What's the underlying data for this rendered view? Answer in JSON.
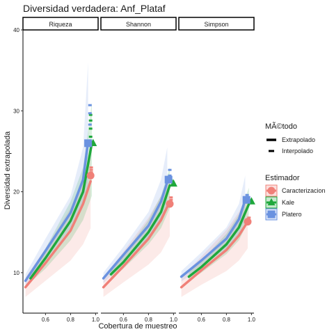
{
  "chart_data": {
    "type": "line",
    "title": "Diversidad verdadera: Anf_Plataf",
    "xlabel": "Cobertura de muestreo",
    "ylabel": "Diversidad extrapolada",
    "ylim": [
      5,
      40
    ],
    "xlim": [
      0.42,
      1.02
    ],
    "y_ticks": [
      10,
      20,
      30,
      40
    ],
    "x_ticks": [
      0.6,
      0.8,
      1.0
    ],
    "x_tick_labels": [
      "0.6",
      "0.8",
      "1.0"
    ],
    "grid": false,
    "facets": [
      "Riqueza",
      "Shannon",
      "Simpson"
    ],
    "legend_placement": "right",
    "legend_method": {
      "title": "MÃ©todo",
      "entries": [
        {
          "label": "Extrapolado",
          "style": "solid-thick"
        },
        {
          "label": "Interpolado",
          "style": "dash-short"
        }
      ]
    },
    "legend_estimator": {
      "title": "Estimador",
      "entries": [
        {
          "label": "Caracterizacion",
          "color": "#F08078",
          "shape": "circle"
        },
        {
          "label": "Kale",
          "color": "#1FA83C",
          "shape": "triangle"
        },
        {
          "label": "Platero",
          "color": "#6A92E0",
          "shape": "square"
        }
      ]
    },
    "panels": [
      {
        "name": "Riqueza",
        "series": [
          {
            "name": "Caracterizacion",
            "x": [
              0.44,
              0.6,
              0.8,
              0.9,
              0.96
            ],
            "y": [
              8.2,
              11.2,
              15.2,
              18.5,
              21.3
            ],
            "lower": [
              7.0,
              9.0,
              11.5,
              13.5,
              15.5
            ],
            "upper": [
              9.4,
              13.0,
              18.0,
              21.5,
              24.5
            ],
            "obs": [
              0.96,
              22.0
            ],
            "interp_x": [
              0.965,
              0.965,
              0.965
            ],
            "interp_y": [
              22.4,
              22.7,
              23.0
            ]
          },
          {
            "name": "Kale",
            "x": [
              0.48,
              0.6,
              0.8,
              0.9,
              0.97
            ],
            "y": [
              9.3,
              11.8,
              16.4,
              20.0,
              26.0
            ],
            "lower": [
              8.8,
              10.5,
              14.0,
              16.5,
              19.5
            ],
            "upper": [
              9.8,
              13.0,
              18.8,
              23.0,
              31.0
            ],
            "obs": [
              0.98,
              26.0
            ],
            "interp_x": [
              0.96,
              0.96,
              0.96,
              0.96
            ],
            "interp_y": [
              26.8,
              27.8,
              28.8,
              29.5
            ]
          },
          {
            "name": "Platero",
            "x": [
              0.44,
              0.6,
              0.8,
              0.9,
              0.94
            ],
            "y": [
              9.0,
              12.7,
              17.4,
              21.5,
              26.2
            ],
            "lower": [
              8.3,
              11.5,
              15.5,
              18.5,
              20.5
            ],
            "upper": [
              9.8,
              14.2,
              19.5,
              25.5,
              36.0
            ],
            "obs": [
              0.94,
              26.0
            ],
            "interp_x": [
              0.94,
              0.955,
              0.955,
              0.955
            ],
            "interp_y": [
              26.3,
              28.3,
              29.7,
              30.7
            ]
          }
        ]
      },
      {
        "name": "Shannon",
        "series": [
          {
            "name": "Caracterizacion",
            "x": [
              0.44,
              0.6,
              0.8,
              0.9,
              0.97
            ],
            "y": [
              8.2,
              10.8,
              14.2,
              16.5,
              18.8
            ],
            "lower": [
              7.0,
              8.8,
              11.0,
              12.5,
              14.5
            ],
            "upper": [
              9.4,
              12.6,
              16.8,
              19.5,
              22.0
            ],
            "obs": [
              0.97,
              18.5
            ],
            "interp_x": [
              0.98,
              0.98
            ],
            "interp_y": [
              19.0,
              19.3
            ]
          },
          {
            "name": "Kale",
            "x": [
              0.5,
              0.6,
              0.8,
              0.9,
              0.97
            ],
            "y": [
              9.8,
              11.3,
              15.0,
              17.5,
              20.8
            ],
            "lower": [
              9.2,
              10.5,
              13.5,
              15.5,
              18.0
            ],
            "upper": [
              10.3,
              12.2,
              16.5,
              19.5,
              23.0
            ],
            "obs": [
              1.0,
              21.0
            ],
            "interp_x": [
              0.98
            ],
            "interp_y": [
              21.4
            ]
          },
          {
            "name": "Platero",
            "x": [
              0.44,
              0.6,
              0.8,
              0.9,
              0.95
            ],
            "y": [
              9.3,
              12.2,
              15.8,
              18.8,
              21.2
            ],
            "lower": [
              8.7,
              11.2,
              14.3,
              16.5,
              18.0
            ],
            "upper": [
              10.0,
              13.2,
              17.5,
              21.5,
              25.5
            ],
            "obs": [
              0.96,
              21.5
            ],
            "interp_x": [
              0.97,
              0.97
            ],
            "interp_y": [
              22.0,
              22.7
            ]
          }
        ]
      },
      {
        "name": "Simpson",
        "series": [
          {
            "name": "Caracterizacion",
            "x": [
              0.44,
              0.6,
              0.8,
              0.9,
              0.97
            ],
            "y": [
              8.2,
              10.3,
              12.8,
              14.6,
              16.3
            ],
            "lower": [
              7.0,
              8.5,
              10.2,
              11.5,
              13.0
            ],
            "upper": [
              9.4,
              12.0,
              15.3,
              17.5,
              19.5
            ],
            "obs": [
              0.97,
              16.3
            ],
            "interp_x": [
              0.98
            ],
            "interp_y": [
              16.8
            ]
          },
          {
            "name": "Kale",
            "x": [
              0.5,
              0.6,
              0.8,
              0.9,
              0.98
            ],
            "y": [
              9.5,
              10.7,
              13.5,
              15.6,
              18.5
            ],
            "lower": [
              9.0,
              10.0,
              12.3,
              14.0,
              16.5
            ],
            "upper": [
              10.0,
              11.5,
              14.8,
              17.2,
              20.5
            ],
            "obs": [
              1.0,
              18.8
            ],
            "interp_x": [],
            "interp_y": []
          },
          {
            "name": "Platero",
            "x": [
              0.44,
              0.6,
              0.8,
              0.9,
              0.95
            ],
            "y": [
              9.5,
              11.5,
              14.2,
              16.6,
              19.0
            ],
            "lower": [
              8.9,
              10.7,
              13.0,
              14.8,
              16.5
            ],
            "upper": [
              10.2,
              12.5,
              15.6,
              18.5,
              22.0
            ],
            "obs": [
              0.96,
              19.0
            ],
            "interp_x": [
              0.965
            ],
            "interp_y": [
              19.6
            ]
          }
        ]
      }
    ]
  }
}
